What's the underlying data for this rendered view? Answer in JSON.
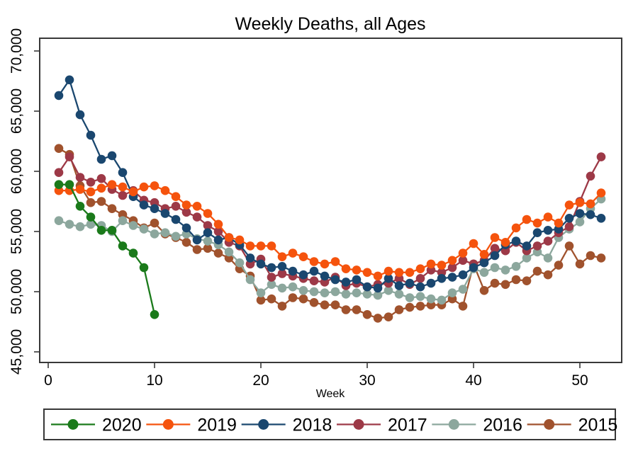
{
  "window": {
    "background": "#ffffff",
    "frame_color": "#383838",
    "text_color": "#000000"
  },
  "chart_data": {
    "type": "line",
    "title": "Weekly Deaths, all Ages",
    "xlabel": "Week",
    "ylabel": "",
    "xlim": [
      0,
      53
    ],
    "ylim": [
      45000,
      70000
    ],
    "grid": false,
    "legend_position": "bottom",
    "marker": "circle",
    "x_ticks": [
      0,
      10,
      20,
      30,
      40,
      50
    ],
    "y_ticks": [
      {
        "value": 45000,
        "label": "45,000"
      },
      {
        "value": 50000,
        "label": "50,000"
      },
      {
        "value": 55000,
        "label": "55,000"
      },
      {
        "value": 60000,
        "label": "60,000"
      },
      {
        "value": 65000,
        "label": "65,000"
      },
      {
        "value": 70000,
        "label": "70,000"
      }
    ],
    "x": [
      1,
      2,
      3,
      4,
      5,
      6,
      7,
      8,
      9,
      10,
      11,
      12,
      13,
      14,
      15,
      16,
      17,
      18,
      19,
      20,
      21,
      22,
      23,
      24,
      25,
      26,
      27,
      28,
      29,
      30,
      31,
      32,
      33,
      34,
      35,
      36,
      37,
      38,
      39,
      40,
      41,
      42,
      43,
      44,
      45,
      46,
      47,
      48,
      49,
      50,
      51,
      52
    ],
    "series": [
      {
        "name": "2020",
        "color": "#1a7a1a",
        "values": [
          58900,
          58900,
          57100,
          56200,
          55100,
          55100,
          53800,
          53200,
          52000,
          48100
        ]
      },
      {
        "name": "2019",
        "color": "#f5530d",
        "values": [
          58400,
          58400,
          58500,
          58300,
          58600,
          58900,
          58700,
          58300,
          58700,
          58800,
          58400,
          57900,
          57200,
          57100,
          56500,
          55600,
          54500,
          54300,
          53800,
          53800,
          53800,
          52900,
          53200,
          52900,
          52500,
          52300,
          52500,
          51900,
          51800,
          51600,
          51300,
          51700,
          51600,
          51600,
          51900,
          52300,
          52200,
          52600,
          53200,
          54000,
          53100,
          54500,
          54100,
          55300,
          56000,
          55700,
          56200,
          55700,
          57200,
          57400,
          57300,
          58200
        ]
      },
      {
        "name": "2018",
        "color": "#1a476f",
        "values": [
          66300,
          67600,
          64700,
          63000,
          61000,
          61300,
          59900,
          57900,
          57200,
          56900,
          56500,
          56000,
          55300,
          54300,
          54900,
          54300,
          54500,
          53900,
          52800,
          52300,
          52000,
          52100,
          51700,
          51400,
          51700,
          51300,
          51000,
          50800,
          51000,
          50400,
          50300,
          51100,
          50500,
          50700,
          50400,
          50700,
          51100,
          51200,
          51400,
          52000,
          52400,
          53000,
          53900,
          54200,
          53800,
          54900,
          55100,
          55200,
          56100,
          56500,
          56400,
          56100
        ]
      },
      {
        "name": "2017",
        "color": "#9d3947",
        "values": [
          59900,
          61200,
          59500,
          59100,
          59400,
          58500,
          58000,
          58400,
          57600,
          57400,
          56900,
          57100,
          56600,
          56200,
          55500,
          55000,
          54100,
          53800,
          52300,
          52700,
          51200,
          51500,
          51300,
          51100,
          50900,
          50800,
          51200,
          50500,
          50700,
          50400,
          50600,
          50700,
          51100,
          50600,
          51100,
          51800,
          51600,
          52000,
          52600,
          52300,
          52600,
          53600,
          53400,
          54100,
          53400,
          53800,
          54200,
          54900,
          55400,
          57500,
          59600,
          61200
        ]
      },
      {
        "name": "2016",
        "color": "#8ca79d",
        "values": [
          55900,
          55600,
          55400,
          55600,
          55500,
          55000,
          55900,
          55500,
          55200,
          54800,
          54900,
          54600,
          54800,
          54400,
          54200,
          53900,
          53300,
          52400,
          51000,
          49900,
          50600,
          50300,
          50400,
          50100,
          50000,
          49900,
          50000,
          49800,
          49900,
          49800,
          49700,
          50100,
          49800,
          49500,
          49600,
          49400,
          49300,
          49900,
          50200,
          51900,
          51600,
          52000,
          51800,
          52100,
          52800,
          53300,
          52800,
          54500,
          55200,
          55800,
          56900,
          57700
        ]
      },
      {
        "name": "2015",
        "color": "#a0522d",
        "values": [
          61900,
          61400,
          58800,
          57400,
          57500,
          56900,
          56400,
          55900,
          55300,
          55700,
          54800,
          54500,
          54100,
          53500,
          53600,
          53200,
          52800,
          51900,
          51300,
          49300,
          49400,
          48800,
          49500,
          49400,
          49100,
          48900,
          48900,
          48500,
          48500,
          48100,
          47800,
          47900,
          48500,
          48700,
          48800,
          48900,
          48900,
          49400,
          48800,
          52300,
          50100,
          50700,
          50600,
          51000,
          50900,
          51700,
          51400,
          52200,
          53800,
          52300,
          53000,
          52800
        ]
      }
    ]
  }
}
